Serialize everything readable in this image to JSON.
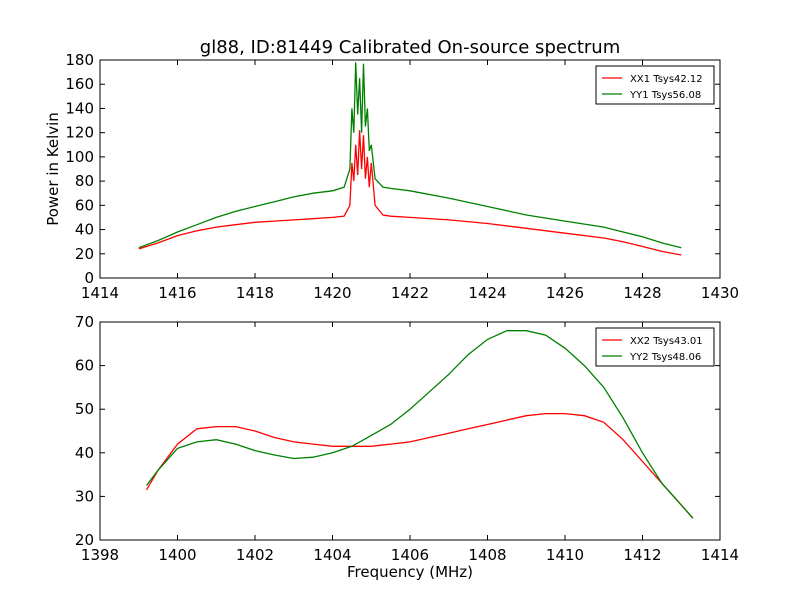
{
  "chart_data": [
    {
      "type": "line",
      "title": "gl88, ID:81449 Calibrated On-source spectrum",
      "xlabel": "",
      "ylabel": "Power in Kelvin",
      "xlim": [
        1414,
        1430
      ],
      "ylim": [
        0,
        180
      ],
      "xticks": [
        1414,
        1416,
        1418,
        1420,
        1422,
        1424,
        1426,
        1428,
        1430
      ],
      "yticks": [
        0,
        20,
        40,
        60,
        80,
        100,
        120,
        140,
        160,
        180
      ],
      "legend_position": "top-right",
      "grid": false,
      "series": [
        {
          "name": "XX1 Tsys42.12",
          "color": "#ff0000",
          "x": [
            1415.0,
            1415.5,
            1416.0,
            1416.5,
            1417.0,
            1417.5,
            1418.0,
            1418.5,
            1419.0,
            1419.5,
            1420.0,
            1420.3,
            1420.45,
            1420.5,
            1420.55,
            1420.6,
            1420.65,
            1420.7,
            1420.75,
            1420.8,
            1420.85,
            1420.9,
            1420.95,
            1421.0,
            1421.1,
            1421.3,
            1421.5,
            1422.0,
            1423.0,
            1424.0,
            1425.0,
            1426.0,
            1427.0,
            1427.5,
            1428.0,
            1428.5,
            1429.0
          ],
          "y": [
            24,
            29,
            35,
            39,
            42,
            44,
            46,
            47,
            48,
            49,
            50,
            51,
            60,
            95,
            80,
            110,
            85,
            122,
            90,
            118,
            82,
            100,
            75,
            95,
            60,
            52,
            51,
            50,
            48,
            45,
            41,
            37,
            33,
            30,
            26,
            22,
            19
          ]
        },
        {
          "name": "YY1 Tsys56.08",
          "color": "#008000",
          "x": [
            1415.0,
            1415.5,
            1416.0,
            1416.5,
            1417.0,
            1417.5,
            1418.0,
            1418.5,
            1419.0,
            1419.5,
            1420.0,
            1420.3,
            1420.45,
            1420.5,
            1420.55,
            1420.6,
            1420.65,
            1420.7,
            1420.75,
            1420.8,
            1420.85,
            1420.9,
            1420.95,
            1421.0,
            1421.1,
            1421.3,
            1421.5,
            1422.0,
            1423.0,
            1424.0,
            1425.0,
            1426.0,
            1427.0,
            1427.5,
            1428.0,
            1428.5,
            1429.0
          ],
          "y": [
            25,
            31,
            38,
            44,
            50,
            55,
            59,
            63,
            67,
            70,
            72,
            75,
            90,
            140,
            120,
            178,
            135,
            165,
            120,
            177,
            125,
            140,
            105,
            110,
            82,
            75,
            74,
            72,
            66,
            59,
            52,
            47,
            42,
            38,
            34,
            29,
            25
          ]
        }
      ]
    },
    {
      "type": "line",
      "title": "",
      "xlabel": "Frequency (MHz)",
      "ylabel": "",
      "xlim": [
        1398,
        1414
      ],
      "ylim": [
        20,
        70
      ],
      "xticks": [
        1398,
        1400,
        1402,
        1404,
        1406,
        1408,
        1410,
        1412,
        1414
      ],
      "yticks": [
        20,
        30,
        40,
        50,
        60,
        70
      ],
      "legend_position": "top-right",
      "grid": false,
      "series": [
        {
          "name": "XX2 Tsys43.01",
          "color": "#ff0000",
          "x": [
            1399.2,
            1399.5,
            1400.0,
            1400.5,
            1401.0,
            1401.5,
            1402.0,
            1402.5,
            1403.0,
            1403.5,
            1404.0,
            1404.5,
            1405.0,
            1405.5,
            1406.0,
            1406.5,
            1407.0,
            1407.5,
            1408.0,
            1408.5,
            1409.0,
            1409.5,
            1410.0,
            1410.5,
            1411.0,
            1411.5,
            1412.0,
            1412.5,
            1413.0,
            1413.3
          ],
          "y": [
            31.5,
            36,
            42,
            45.5,
            46,
            46,
            45,
            43.5,
            42.5,
            42,
            41.5,
            41.5,
            41.5,
            42,
            42.5,
            43.5,
            44.5,
            45.5,
            46.5,
            47.5,
            48.5,
            49,
            49,
            48.5,
            47,
            43,
            38,
            33,
            28,
            25
          ]
        },
        {
          "name": "YY2 Tsys48.06",
          "color": "#008000",
          "x": [
            1399.2,
            1399.5,
            1400.0,
            1400.5,
            1401.0,
            1401.5,
            1402.0,
            1402.5,
            1403.0,
            1403.5,
            1404.0,
            1404.5,
            1405.0,
            1405.5,
            1406.0,
            1406.5,
            1407.0,
            1407.5,
            1408.0,
            1408.5,
            1409.0,
            1409.5,
            1410.0,
            1410.5,
            1411.0,
            1411.5,
            1412.0,
            1412.5,
            1413.0,
            1413.3
          ],
          "y": [
            32.5,
            36,
            41,
            42.5,
            43,
            42,
            40.5,
            39.5,
            38.7,
            39,
            40,
            41.5,
            44,
            46.5,
            50,
            54,
            58,
            62.5,
            66,
            68,
            68,
            67,
            64,
            60,
            55,
            48,
            40,
            33,
            28,
            25
          ]
        }
      ]
    }
  ]
}
